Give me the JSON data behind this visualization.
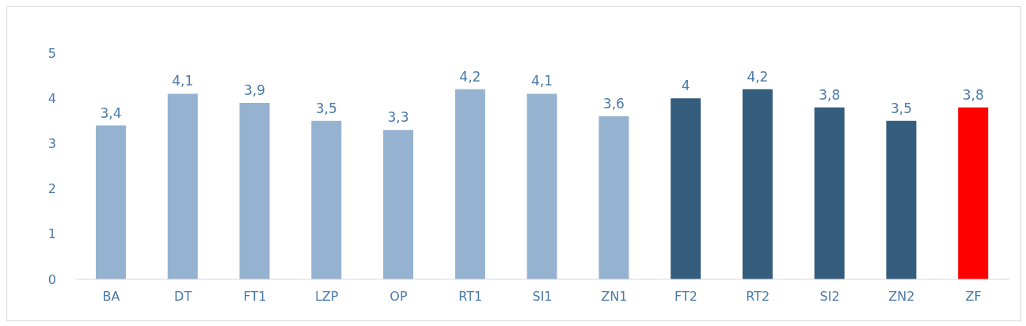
{
  "chart_data": {
    "type": "bar",
    "categories": [
      "BA",
      "DT",
      "FT1",
      "LZP",
      "OP",
      "RT1",
      "SI1",
      "ZN1",
      "FT2",
      "RT2",
      "SI2",
      "ZN2",
      "ZF"
    ],
    "values": [
      3.4,
      4.1,
      3.9,
      3.5,
      3.3,
      4.2,
      4.1,
      3.6,
      4,
      4.2,
      3.8,
      3.5,
      3.8
    ],
    "colors": [
      "#95b3d0",
      "#95b3d0",
      "#95b3d0",
      "#95b3d0",
      "#95b3d0",
      "#95b3d0",
      "#95b3d0",
      "#95b3d0",
      "#345d7e",
      "#345d7e",
      "#345d7e",
      "#345d7e",
      "#ff0000"
    ],
    "value_labels": [
      "3,4",
      "4,1",
      "3,9",
      "3,5",
      "3,3",
      "4,2",
      "4,1",
      "3,6",
      "4",
      "4,2",
      "3,8",
      "3,5",
      "3,8"
    ],
    "ylim": [
      0,
      5
    ],
    "yticks": [
      0,
      1,
      2,
      3,
      4,
      5
    ],
    "grid": false
  }
}
